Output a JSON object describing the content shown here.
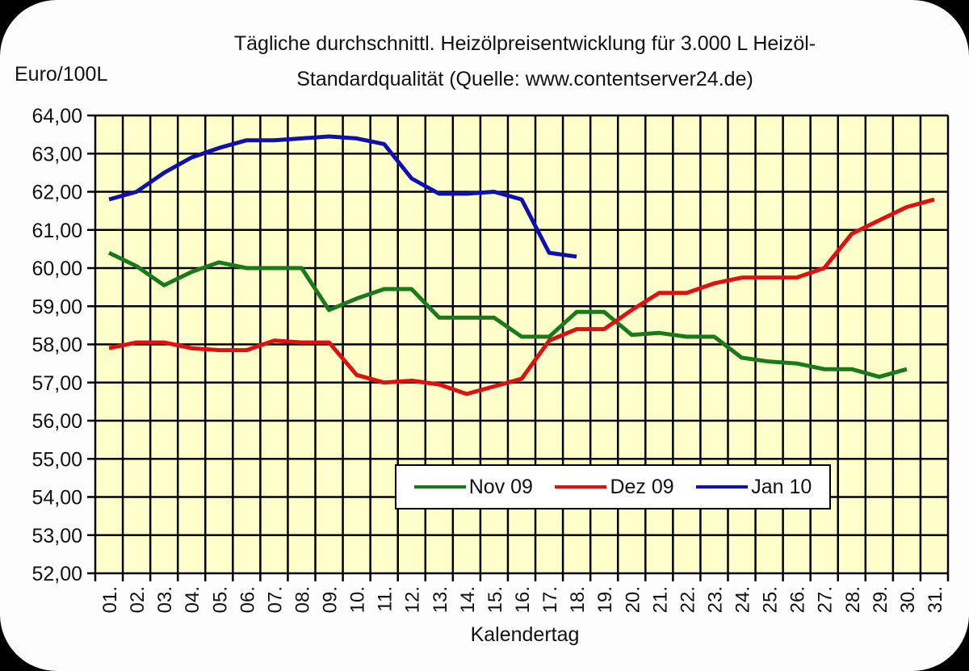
{
  "chart_data": {
    "type": "line",
    "title": "Tägliche durchschnittl. Heizölpreisentwicklung für 3.000 L Heizöl-Standardqualität (Quelle: www.contentserver24.de)",
    "title_lines": [
      "Tägliche durchschnittl. Heizölpreisentwicklung für 3.000 L Heizöl-",
      "Standardqualität (Quelle: www.contentserver24.de)"
    ],
    "xlabel": "Kalendertag",
    "ylabel": "Euro/100L",
    "ylim": [
      52,
      64
    ],
    "yticks": [
      "52,00",
      "53,00",
      "54,00",
      "55,00",
      "56,00",
      "57,00",
      "58,00",
      "59,00",
      "60,00",
      "61,00",
      "62,00",
      "63,00",
      "64,00"
    ],
    "categories": [
      "01.",
      "02.",
      "03.",
      "04.",
      "05.",
      "06.",
      "07.",
      "08.",
      "09.",
      "10.",
      "11.",
      "12.",
      "13.",
      "14.",
      "15.",
      "16.",
      "17.",
      "18.",
      "19.",
      "20.",
      "21.",
      "22.",
      "23.",
      "24.",
      "25.",
      "26.",
      "27.",
      "28.",
      "29.",
      "30.",
      "31."
    ],
    "grid": true,
    "plot_background": "#ffffcc",
    "legend_position": "inside-bottom-center",
    "series": [
      {
        "name": "Nov 09",
        "color": "#1a7a1a",
        "values": [
          60.4,
          60.05,
          59.55,
          59.9,
          60.15,
          60.0,
          60.0,
          60.0,
          58.9,
          59.2,
          59.45,
          59.45,
          58.7,
          58.7,
          58.7,
          58.2,
          58.2,
          58.85,
          58.85,
          58.25,
          58.3,
          58.2,
          58.2,
          57.65,
          57.55,
          57.5,
          57.35,
          57.35,
          57.15,
          57.35,
          null
        ]
      },
      {
        "name": "Dez 09",
        "color": "#e01010",
        "values": [
          57.9,
          58.05,
          58.05,
          57.9,
          57.85,
          57.85,
          58.1,
          58.05,
          58.05,
          57.2,
          57.0,
          57.05,
          56.95,
          56.7,
          56.9,
          57.1,
          58.1,
          58.4,
          58.4,
          58.9,
          59.35,
          59.35,
          59.6,
          59.75,
          59.75,
          59.75,
          60.0,
          60.9,
          61.25,
          61.6,
          61.8
        ]
      },
      {
        "name": "Jan 10",
        "color": "#1010b0",
        "values": [
          61.8,
          62.0,
          62.5,
          62.9,
          63.15,
          63.35,
          63.35,
          63.4,
          63.45,
          63.4,
          63.25,
          62.35,
          61.95,
          61.95,
          62.0,
          61.8,
          60.4,
          60.3,
          null,
          null,
          null,
          null,
          null,
          null,
          null,
          null,
          null,
          null,
          null,
          null,
          null
        ]
      }
    ]
  },
  "legend": {
    "items": [
      {
        "label": "Nov 09",
        "color": "#1a7a1a"
      },
      {
        "label": "Dez 09",
        "color": "#e01010"
      },
      {
        "label": "Jan 10",
        "color": "#1010b0"
      }
    ]
  }
}
